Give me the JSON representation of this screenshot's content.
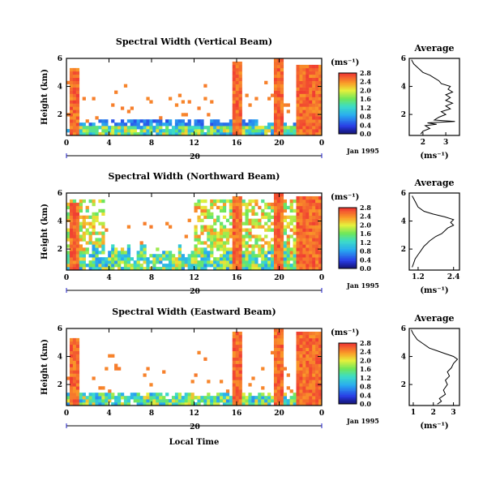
{
  "figure": {
    "x_label": "Local Time",
    "date_label": "Jan 1995",
    "day_marker": "20"
  },
  "chart_data": [
    {
      "type": "heatmap",
      "title": "Spectral Width (Vertical Beam)",
      "ylabel": "Height (km)",
      "yticks": [
        "2",
        "4",
        "6"
      ],
      "xticks": [
        "0",
        "4",
        "8",
        "12",
        "16",
        "20",
        "0"
      ],
      "xlim": [
        0,
        24
      ],
      "ylim": [
        0.5,
        6
      ],
      "colorbar": {
        "unit": "(ms⁻¹)",
        "ticks": [
          "0.0",
          "0.4",
          "0.8",
          "1.2",
          "1.6",
          "2.0",
          "2.4",
          "2.8"
        ],
        "range": [
          0,
          2.8
        ]
      },
      "profile": {
        "title": "Average",
        "xlabel": "(ms⁻¹)",
        "xticks": [
          "2",
          "3"
        ],
        "xlim": [
          1.4,
          3.6
        ],
        "yticks": [
          "2",
          "4",
          "6"
        ],
        "points": [
          [
            1.9,
            0.6
          ],
          [
            2.0,
            0.8
          ],
          [
            2.3,
            1.0
          ],
          [
            2.1,
            1.2
          ],
          [
            2.6,
            1.3
          ],
          [
            2.2,
            1.4
          ],
          [
            3.4,
            1.5
          ],
          [
            2.5,
            1.6
          ],
          [
            2.7,
            1.8
          ],
          [
            3.0,
            2.0
          ],
          [
            2.8,
            2.2
          ],
          [
            3.2,
            2.4
          ],
          [
            3.0,
            2.6
          ],
          [
            3.3,
            2.8
          ],
          [
            3.0,
            3.0
          ],
          [
            3.2,
            3.2
          ],
          [
            3.0,
            3.4
          ],
          [
            3.3,
            3.6
          ],
          [
            3.1,
            3.8
          ],
          [
            3.2,
            4.0
          ],
          [
            2.8,
            4.2
          ],
          [
            2.7,
            4.4
          ],
          [
            2.5,
            4.6
          ],
          [
            2.3,
            4.8
          ],
          [
            2.0,
            5.0
          ],
          [
            1.8,
            5.3
          ],
          [
            1.6,
            5.6
          ],
          [
            1.5,
            5.9
          ]
        ]
      }
    },
    {
      "type": "heatmap",
      "title": "Spectral Width (Northward Beam)",
      "ylabel": "Height (km)",
      "yticks": [
        "2",
        "4",
        "6"
      ],
      "xticks": [
        "0",
        "4",
        "8",
        "12",
        "16",
        "20",
        "0"
      ],
      "xlim": [
        0,
        24
      ],
      "ylim": [
        0.5,
        6
      ],
      "colorbar": {
        "unit": "(ms⁻¹)",
        "ticks": [
          "0.0",
          "0.4",
          "0.8",
          "1.2",
          "1.6",
          "2.0",
          "2.4",
          "2.8"
        ],
        "range": [
          0,
          2.8
        ]
      },
      "profile": {
        "title": "Average",
        "xlabel": "(ms⁻¹)",
        "xticks": [
          "1.2",
          "2.4"
        ],
        "xlim": [
          0.9,
          2.6
        ],
        "yticks": [
          "2",
          "4",
          "6"
        ],
        "points": [
          [
            1.0,
            0.7
          ],
          [
            1.05,
            1.0
          ],
          [
            1.1,
            1.3
          ],
          [
            1.2,
            1.6
          ],
          [
            1.3,
            1.9
          ],
          [
            1.4,
            2.2
          ],
          [
            1.5,
            2.4
          ],
          [
            1.6,
            2.6
          ],
          [
            1.8,
            2.9
          ],
          [
            2.0,
            3.1
          ],
          [
            2.1,
            3.3
          ],
          [
            2.2,
            3.5
          ],
          [
            2.4,
            3.7
          ],
          [
            2.3,
            3.9
          ],
          [
            2.4,
            4.1
          ],
          [
            2.1,
            4.3
          ],
          [
            1.7,
            4.5
          ],
          [
            1.4,
            4.7
          ],
          [
            1.2,
            5.0
          ],
          [
            1.1,
            5.4
          ],
          [
            1.0,
            5.8
          ]
        ]
      }
    },
    {
      "type": "heatmap",
      "title": "Spectral Width (Eastward Beam)",
      "ylabel": "Height (km)",
      "yticks": [
        "2",
        "4",
        "6"
      ],
      "xticks": [
        "0",
        "4",
        "8",
        "12",
        "16",
        "20",
        "0"
      ],
      "xlim": [
        0,
        24
      ],
      "ylim": [
        0.5,
        6
      ],
      "colorbar": {
        "unit": "(ms⁻¹)",
        "ticks": [
          "0.0",
          "0.4",
          "0.8",
          "1.2",
          "1.6",
          "2.0",
          "2.4",
          "2.8"
        ],
        "range": [
          0,
          2.8
        ]
      },
      "profile": {
        "title": "Average",
        "xlabel": "(ms⁻¹)",
        "xticks": [
          "1",
          "2",
          "3"
        ],
        "xlim": [
          0.8,
          3.3
        ],
        "yticks": [
          "2",
          "4",
          "6"
        ],
        "points": [
          [
            2.2,
            0.6
          ],
          [
            2.4,
            0.8
          ],
          [
            2.3,
            1.0
          ],
          [
            2.6,
            1.3
          ],
          [
            2.5,
            1.6
          ],
          [
            2.7,
            2.0
          ],
          [
            2.6,
            2.3
          ],
          [
            2.8,
            2.6
          ],
          [
            2.7,
            2.9
          ],
          [
            2.9,
            3.2
          ],
          [
            3.0,
            3.5
          ],
          [
            3.2,
            3.8
          ],
          [
            3.0,
            4.0
          ],
          [
            2.6,
            4.2
          ],
          [
            2.2,
            4.4
          ],
          [
            1.8,
            4.6
          ],
          [
            1.5,
            4.9
          ],
          [
            1.2,
            5.2
          ],
          [
            1.0,
            5.6
          ],
          [
            0.9,
            5.9
          ]
        ]
      }
    }
  ]
}
